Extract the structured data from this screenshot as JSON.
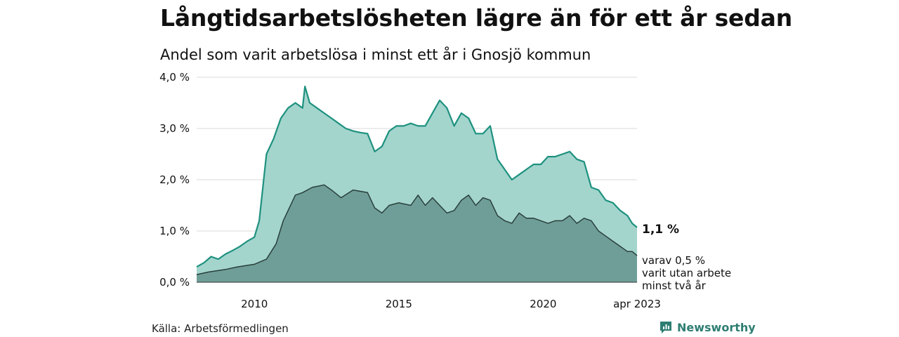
{
  "header": {
    "title": "Långtidsarbetslösheten lägre än för ett år sedan",
    "subtitle": "Andel som varit arbetslösa i minst ett år i Gnosjö kommun"
  },
  "footer": {
    "source": "Källa: Arbetsförmedlingen",
    "brand": "Newsworthy"
  },
  "colors": {
    "outer_fill": "#a3d5cd",
    "outer_line": "#1e917f",
    "inner_fill": "#6f9e98",
    "inner_line": "#2a3f3b",
    "grid": "#d9d9d9",
    "brand": "#2e7d72"
  },
  "chart_data": {
    "type": "area",
    "title": "",
    "xlabel": "",
    "ylabel": "",
    "ylim": [
      0,
      4
    ],
    "y_ticks": [
      0,
      1,
      2,
      3,
      4
    ],
    "y_tick_labels": [
      "0,0 %",
      "1,0 %",
      "2,0 %",
      "3,0 %",
      "4,0 %"
    ],
    "x_range": [
      "2008-01",
      "2023-04"
    ],
    "x_ticks": [
      "2010-01",
      "2015-01",
      "2020-01",
      "2023-04"
    ],
    "x_tick_labels": [
      "2010",
      "2015",
      "2020",
      "apr 2023"
    ],
    "grid": true,
    "legend": "none",
    "annotations": {
      "total_label": "1,1 %",
      "sub_label_lines": [
        "varav 0,5 %",
        "varit utan arbete",
        "minst två år"
      ]
    },
    "series": [
      {
        "values": [
          {
            "x": "2008-01",
            "y": 0.3
          },
          {
            "x": "2008-04",
            "y": 0.38
          },
          {
            "x": "2008-07",
            "y": 0.5
          },
          {
            "x": "2008-10",
            "y": 0.45
          },
          {
            "x": "2009-01",
            "y": 0.55
          },
          {
            "x": "2009-04",
            "y": 0.62
          },
          {
            "x": "2009-07",
            "y": 0.7
          },
          {
            "x": "2009-10",
            "y": 0.8
          },
          {
            "x": "2010-01",
            "y": 0.88
          },
          {
            "x": "2010-03",
            "y": 1.2
          },
          {
            "x": "2010-06",
            "y": 2.5
          },
          {
            "x": "2010-09",
            "y": 2.8
          },
          {
            "x": "2010-12",
            "y": 3.2
          },
          {
            "x": "2011-03",
            "y": 3.4
          },
          {
            "x": "2011-06",
            "y": 3.5
          },
          {
            "x": "2011-09",
            "y": 3.4
          },
          {
            "x": "2011-10",
            "y": 3.82
          },
          {
            "x": "2011-12",
            "y": 3.5
          },
          {
            "x": "2012-03",
            "y": 3.4
          },
          {
            "x": "2012-06",
            "y": 3.3
          },
          {
            "x": "2012-09",
            "y": 3.2
          },
          {
            "x": "2012-12",
            "y": 3.1
          },
          {
            "x": "2013-03",
            "y": 3.0
          },
          {
            "x": "2013-06",
            "y": 2.95
          },
          {
            "x": "2013-09",
            "y": 2.92
          },
          {
            "x": "2013-12",
            "y": 2.9
          },
          {
            "x": "2014-03",
            "y": 2.55
          },
          {
            "x": "2014-06",
            "y": 2.65
          },
          {
            "x": "2014-09",
            "y": 2.95
          },
          {
            "x": "2014-12",
            "y": 3.05
          },
          {
            "x": "2015-03",
            "y": 3.05
          },
          {
            "x": "2015-06",
            "y": 3.1
          },
          {
            "x": "2015-09",
            "y": 3.05
          },
          {
            "x": "2015-12",
            "y": 3.05
          },
          {
            "x": "2016-03",
            "y": 3.3
          },
          {
            "x": "2016-06",
            "y": 3.55
          },
          {
            "x": "2016-09",
            "y": 3.4
          },
          {
            "x": "2016-12",
            "y": 3.05
          },
          {
            "x": "2017-03",
            "y": 3.3
          },
          {
            "x": "2017-06",
            "y": 3.2
          },
          {
            "x": "2017-09",
            "y": 2.9
          },
          {
            "x": "2017-12",
            "y": 2.9
          },
          {
            "x": "2018-03",
            "y": 3.05
          },
          {
            "x": "2018-06",
            "y": 2.4
          },
          {
            "x": "2018-09",
            "y": 2.2
          },
          {
            "x": "2018-12",
            "y": 2.0
          },
          {
            "x": "2019-03",
            "y": 2.1
          },
          {
            "x": "2019-06",
            "y": 2.2
          },
          {
            "x": "2019-09",
            "y": 2.3
          },
          {
            "x": "2019-12",
            "y": 2.3
          },
          {
            "x": "2020-03",
            "y": 2.45
          },
          {
            "x": "2020-06",
            "y": 2.45
          },
          {
            "x": "2020-09",
            "y": 2.5
          },
          {
            "x": "2020-12",
            "y": 2.55
          },
          {
            "x": "2021-03",
            "y": 2.4
          },
          {
            "x": "2021-06",
            "y": 2.35
          },
          {
            "x": "2021-09",
            "y": 1.85
          },
          {
            "x": "2021-12",
            "y": 1.8
          },
          {
            "x": "2022-03",
            "y": 1.6
          },
          {
            "x": "2022-06",
            "y": 1.55
          },
          {
            "x": "2022-09",
            "y": 1.4
          },
          {
            "x": "2022-12",
            "y": 1.3
          },
          {
            "x": "2023-02",
            "y": 1.15
          },
          {
            "x": "2023-04",
            "y": 1.07
          }
        ]
      },
      {
        "values": [
          {
            "x": "2008-01",
            "y": 0.15
          },
          {
            "x": "2008-06",
            "y": 0.2
          },
          {
            "x": "2009-01",
            "y": 0.25
          },
          {
            "x": "2009-06",
            "y": 0.3
          },
          {
            "x": "2010-01",
            "y": 0.35
          },
          {
            "x": "2010-06",
            "y": 0.45
          },
          {
            "x": "2010-10",
            "y": 0.75
          },
          {
            "x": "2011-01",
            "y": 1.2
          },
          {
            "x": "2011-06",
            "y": 1.7
          },
          {
            "x": "2011-09",
            "y": 1.75
          },
          {
            "x": "2012-01",
            "y": 1.85
          },
          {
            "x": "2012-06",
            "y": 1.9
          },
          {
            "x": "2012-09",
            "y": 1.8
          },
          {
            "x": "2013-01",
            "y": 1.65
          },
          {
            "x": "2013-06",
            "y": 1.8
          },
          {
            "x": "2013-12",
            "y": 1.75
          },
          {
            "x": "2014-03",
            "y": 1.45
          },
          {
            "x": "2014-06",
            "y": 1.35
          },
          {
            "x": "2014-09",
            "y": 1.5
          },
          {
            "x": "2015-01",
            "y": 1.55
          },
          {
            "x": "2015-06",
            "y": 1.5
          },
          {
            "x": "2015-09",
            "y": 1.7
          },
          {
            "x": "2015-12",
            "y": 1.5
          },
          {
            "x": "2016-03",
            "y": 1.65
          },
          {
            "x": "2016-06",
            "y": 1.5
          },
          {
            "x": "2016-09",
            "y": 1.35
          },
          {
            "x": "2016-12",
            "y": 1.4
          },
          {
            "x": "2017-03",
            "y": 1.6
          },
          {
            "x": "2017-06",
            "y": 1.7
          },
          {
            "x": "2017-09",
            "y": 1.5
          },
          {
            "x": "2017-12",
            "y": 1.65
          },
          {
            "x": "2018-03",
            "y": 1.6
          },
          {
            "x": "2018-06",
            "y": 1.3
          },
          {
            "x": "2018-09",
            "y": 1.2
          },
          {
            "x": "2018-12",
            "y": 1.15
          },
          {
            "x": "2019-03",
            "y": 1.35
          },
          {
            "x": "2019-06",
            "y": 1.25
          },
          {
            "x": "2019-09",
            "y": 1.25
          },
          {
            "x": "2019-12",
            "y": 1.2
          },
          {
            "x": "2020-03",
            "y": 1.15
          },
          {
            "x": "2020-06",
            "y": 1.2
          },
          {
            "x": "2020-09",
            "y": 1.2
          },
          {
            "x": "2020-12",
            "y": 1.3
          },
          {
            "x": "2021-03",
            "y": 1.15
          },
          {
            "x": "2021-06",
            "y": 1.25
          },
          {
            "x": "2021-09",
            "y": 1.2
          },
          {
            "x": "2021-12",
            "y": 1.0
          },
          {
            "x": "2022-03",
            "y": 0.9
          },
          {
            "x": "2022-06",
            "y": 0.8
          },
          {
            "x": "2022-09",
            "y": 0.7
          },
          {
            "x": "2022-12",
            "y": 0.6
          },
          {
            "x": "2023-02",
            "y": 0.6
          },
          {
            "x": "2023-04",
            "y": 0.52
          }
        ]
      }
    ]
  }
}
